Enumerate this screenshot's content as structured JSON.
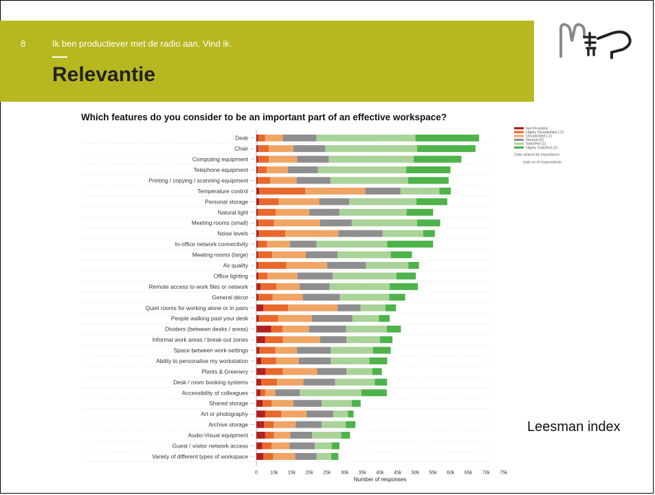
{
  "slide": {
    "number": "8",
    "subtitle": "Ik ben productiever met de radio aan. Vind ik.",
    "title": "Relevantie",
    "caption": "Leesman index"
  },
  "colors": {
    "header": "#b7b720",
    "not_provided": "#b22020",
    "highly_dissatisfied": "#e9682c",
    "dissatisfied": "#f0a565",
    "neutral": "#8e8e8e",
    "satisfied": "#a9d398",
    "highly_satisfied": "#4db34a"
  },
  "chart_data": {
    "type": "bar",
    "orientation": "horizontal",
    "stacked": true,
    "title": "Which features do you consider to be an important part of an effective workspace?",
    "xlabel": "Number of responses",
    "xlim": [
      0,
      75000
    ],
    "xticks": [
      "0",
      "10k",
      "15k",
      "20k",
      "25k",
      "30k",
      "35k",
      "40k",
      "45k",
      "50k",
      "55k",
      "60k",
      "65k",
      "70k",
      "75k"
    ],
    "legend_position": "right",
    "legend_notes": [
      "Data ranked by importance",
      "total no of respondents"
    ],
    "categories": [
      "Desk",
      "Chair",
      "Computing equipment",
      "Telephone equipment",
      "Printing / copying / scanning equipment",
      "Temperature control",
      "Personal storage",
      "Natural light",
      "Meeting rooms (small)",
      "Noise levels",
      "In-office network connectivity",
      "Meeting rooms (large)",
      "Air quality",
      "Office lighting",
      "Remote access to work files or network",
      "General décor",
      "Quiet rooms for working alone or in pairs",
      "People walking past your desk",
      "Dividers (between desks / areas)",
      "Informal work areas / break-out zones",
      "Space between work-settings",
      "Ability to personalise my workstation",
      "Plants & Greenery",
      "Desk / room booking systems",
      "Accessibility of colleagues",
      "Shared storage",
      "Art or photography",
      "Archive storage",
      "Audio-Visual equipment",
      "Guest / visitor network access",
      "Variety of different types of workspace"
    ],
    "series": [
      {
        "name": "Not Provided",
        "values": [
          500,
          500,
          500,
          400,
          400,
          800,
          800,
          500,
          500,
          700,
          500,
          500,
          500,
          600,
          1200,
          600,
          2000,
          700,
          4200,
          2500,
          900,
          1400,
          2600,
          1400,
          1200,
          1800,
          2500,
          2200,
          2500,
          1700,
          2000
        ]
      },
      {
        "name": "Highly Dissatisfied (-2)",
        "values": [
          2000,
          3000,
          3000,
          2500,
          3500,
          13000,
          5500,
          5000,
          4500,
          7500,
          2500,
          4000,
          8000,
          2500,
          4500,
          4000,
          7000,
          5500,
          3200,
          5000,
          4500,
          4200,
          4900,
          4500,
          1300,
          2500,
          4500,
          2700,
          2500,
          2600,
          2800
        ]
      },
      {
        "name": "Dissatisfied (-1)",
        "values": [
          5000,
          7000,
          8000,
          6000,
          7500,
          17000,
          11500,
          9500,
          13000,
          15000,
          6500,
          9500,
          11500,
          8500,
          6500,
          8500,
          14000,
          9500,
          7500,
          10500,
          6100,
          6400,
          9700,
          7400,
          2800,
          6200,
          7200,
          6200,
          4600,
          5100,
          6200
        ]
      },
      {
        "name": "Neutral (0)",
        "values": [
          9500,
          9000,
          9000,
          8500,
          9500,
          10000,
          8500,
          8500,
          9000,
          12500,
          7500,
          9000,
          11000,
          10000,
          8500,
          10500,
          6500,
          11500,
          10500,
          7500,
          9500,
          9000,
          8300,
          9000,
          7000,
          8000,
          7500,
          7400,
          6200,
          7100,
          6000
        ]
      },
      {
        "name": "Satisfied (1)",
        "values": [
          28000,
          26000,
          24000,
          25000,
          22000,
          11000,
          19000,
          19000,
          18500,
          11500,
          20000,
          15000,
          12000,
          18000,
          17000,
          14000,
          7000,
          7500,
          11500,
          9500,
          12000,
          11000,
          7300,
          11200,
          17400,
          8500,
          4200,
          6800,
          8200,
          4800,
          4200
        ]
      },
      {
        "name": "Highly Satisfied (2)",
        "values": [
          18000,
          16500,
          13500,
          12500,
          11500,
          3200,
          8700,
          7500,
          6500,
          3300,
          13000,
          6000,
          3000,
          5500,
          8000,
          4500,
          3000,
          3000,
          4000,
          3500,
          5000,
          5000,
          2700,
          3500,
          7200,
          2500,
          1600,
          2700,
          2500,
          2200,
          2000
        ]
      }
    ]
  }
}
